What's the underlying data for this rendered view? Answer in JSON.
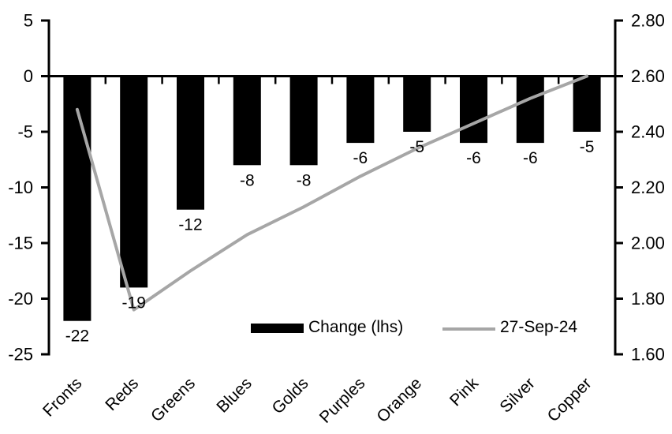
{
  "chart_data": {
    "type": "combo-bar-line",
    "title": "",
    "categories": [
      "Fronts",
      "Reds",
      "Greens",
      "Blues",
      "Golds",
      "Purples",
      "Orange",
      "Pink",
      "Silver",
      "Copper"
    ],
    "series": [
      {
        "name": "Change (lhs)",
        "type": "bar",
        "axis": "left",
        "color": "#000000",
        "values": [
          -22,
          -19,
          -12,
          -8,
          -8,
          -6,
          -5,
          -6,
          -6,
          -5
        ]
      },
      {
        "name": "27-Sep-24",
        "type": "line",
        "axis": "right",
        "color": "#a6a6a6",
        "values": [
          2.48,
          1.76,
          1.9,
          2.03,
          2.13,
          2.24,
          2.34,
          2.43,
          2.52,
          2.6
        ]
      }
    ],
    "data_labels": [
      "-22",
      "-19",
      "-12",
      "-8",
      "-8",
      "-6",
      "-5",
      "-6",
      "-6",
      "-5"
    ],
    "left_axis": {
      "min": -25,
      "max": 5,
      "step": 5,
      "ticks": [
        "5",
        "0",
        "-5",
        "-10",
        "-15",
        "-20",
        "-25"
      ]
    },
    "right_axis": {
      "min": 1.6,
      "max": 2.8,
      "step": 0.2,
      "ticks": [
        "2.80",
        "2.60",
        "2.40",
        "2.20",
        "2.00",
        "1.80",
        "1.60"
      ]
    },
    "legend": {
      "bar_label": "Change (lhs)",
      "line_label": "27-Sep-24",
      "position": "bottom-inside"
    },
    "grid": false,
    "colors": {
      "bar": "#000000",
      "line": "#a6a6a6",
      "axis": "#000000",
      "background": "#ffffff",
      "text": "#000000"
    }
  }
}
